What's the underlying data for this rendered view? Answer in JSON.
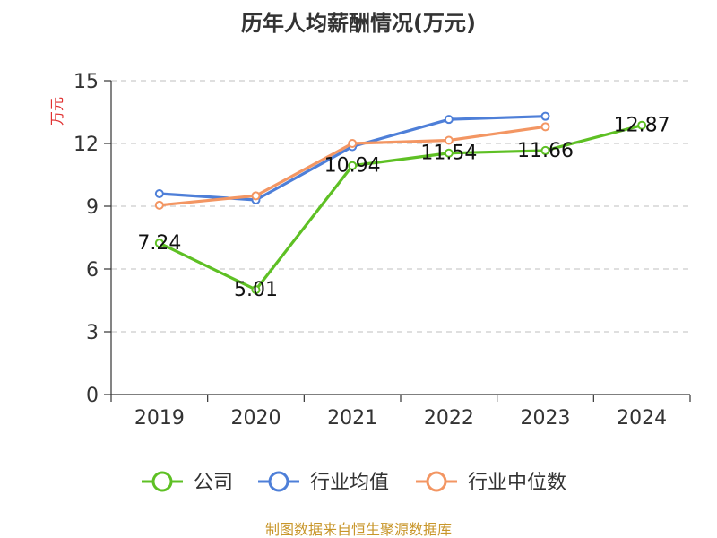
{
  "chart_data": {
    "type": "line",
    "title": "历年人均薪酬情况(万元)",
    "ylabel": "万元",
    "xlabel": "",
    "categories": [
      "2019",
      "2020",
      "2021",
      "2022",
      "2023",
      "2024"
    ],
    "ylim": [
      0,
      15
    ],
    "yticks": [
      0,
      3,
      6,
      9,
      12,
      15
    ],
    "grid": true,
    "legend_position": "bottom",
    "series": [
      {
        "name": "公司",
        "color": "#5ec024",
        "values": [
          7.24,
          5.01,
          10.94,
          11.54,
          11.66,
          12.87
        ],
        "labels": [
          "7.24",
          "5.01",
          "10.94",
          "11.54",
          "11.66",
          "12.87"
        ]
      },
      {
        "name": "行业均值",
        "color": "#4e7fd8",
        "values": [
          9.6,
          9.3,
          11.85,
          13.15,
          13.3,
          null
        ]
      },
      {
        "name": "行业中位数",
        "color": "#f39663",
        "values": [
          9.05,
          9.5,
          12.0,
          12.15,
          12.8,
          null
        ]
      }
    ]
  },
  "colors": {
    "title": "#333333",
    "ylabel": "#e03030",
    "footer": "#c8962a",
    "grid": "#cccccc"
  },
  "footer": "制图数据来自恒生聚源数据库"
}
